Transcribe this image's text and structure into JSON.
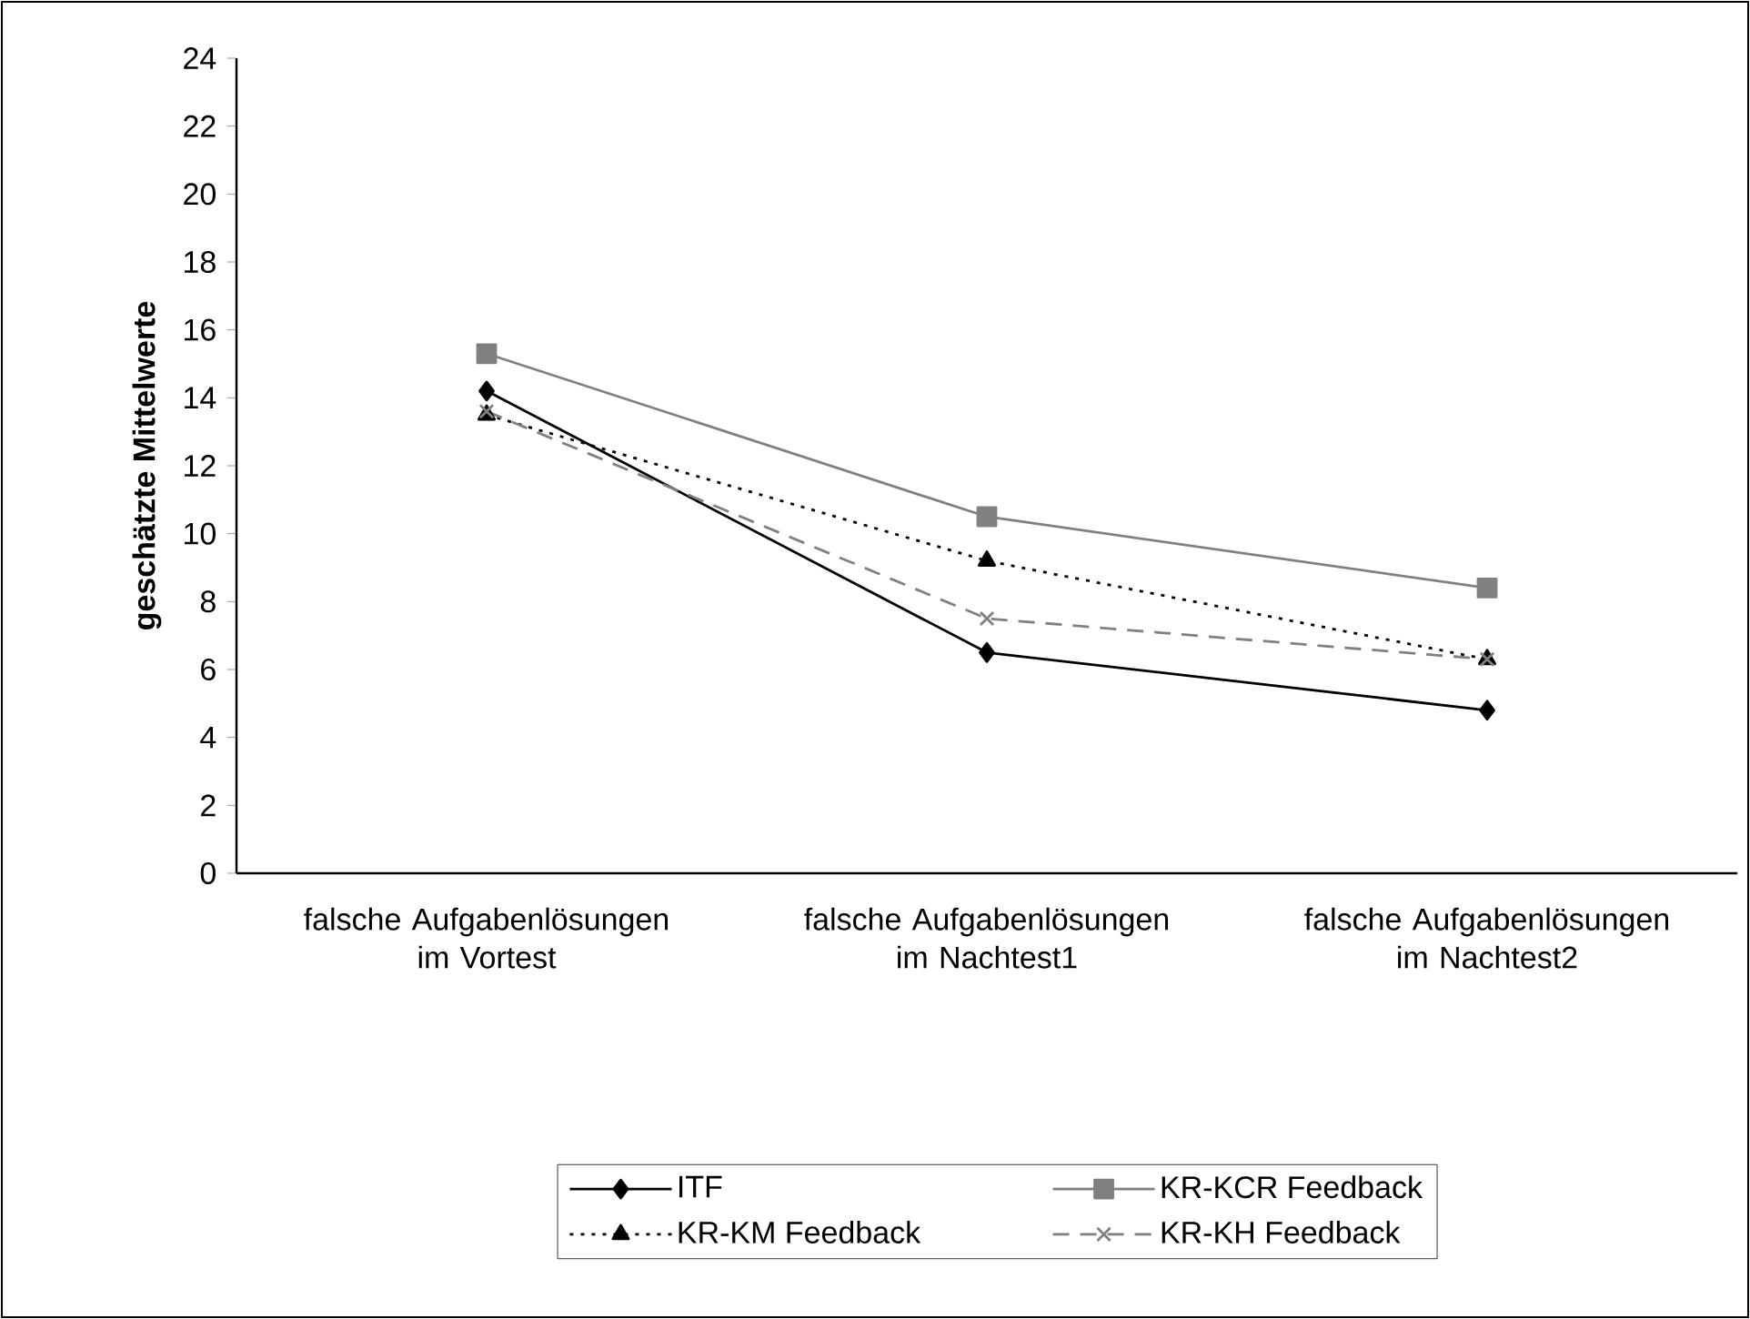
{
  "chart_data": {
    "type": "line",
    "ylabel": "geschätzte Mittelwerte",
    "categories": [
      "falsche Aufgabenlösungen im Vortest",
      "falsche Aufgabenlösungen im Nachtest1",
      "falsche Aufgabenlösungen im Nachtest2"
    ],
    "series": [
      {
        "name": "ITF",
        "color": "#000000",
        "marker": "diamond",
        "line_style": "solid",
        "values": [
          14.2,
          6.5,
          4.8
        ]
      },
      {
        "name": "KR-KCR Feedback",
        "color": "#808080",
        "marker": "square",
        "line_style": "solid",
        "values": [
          15.3,
          10.5,
          8.4
        ]
      },
      {
        "name": "KR-KM Feedback",
        "color": "#000000",
        "marker": "triangle",
        "line_style": "dotted",
        "values": [
          13.5,
          9.2,
          6.3
        ]
      },
      {
        "name": "KR-KH Feedback",
        "color": "#808080",
        "marker": "cross",
        "line_style": "dashed",
        "values": [
          13.6,
          7.5,
          6.3
        ]
      }
    ],
    "ylim": [
      0,
      24
    ],
    "yticks": [
      0,
      2,
      4,
      6,
      8,
      10,
      12,
      14,
      16,
      18,
      20,
      22,
      24
    ],
    "grid": false,
    "legend": "bottom"
  }
}
